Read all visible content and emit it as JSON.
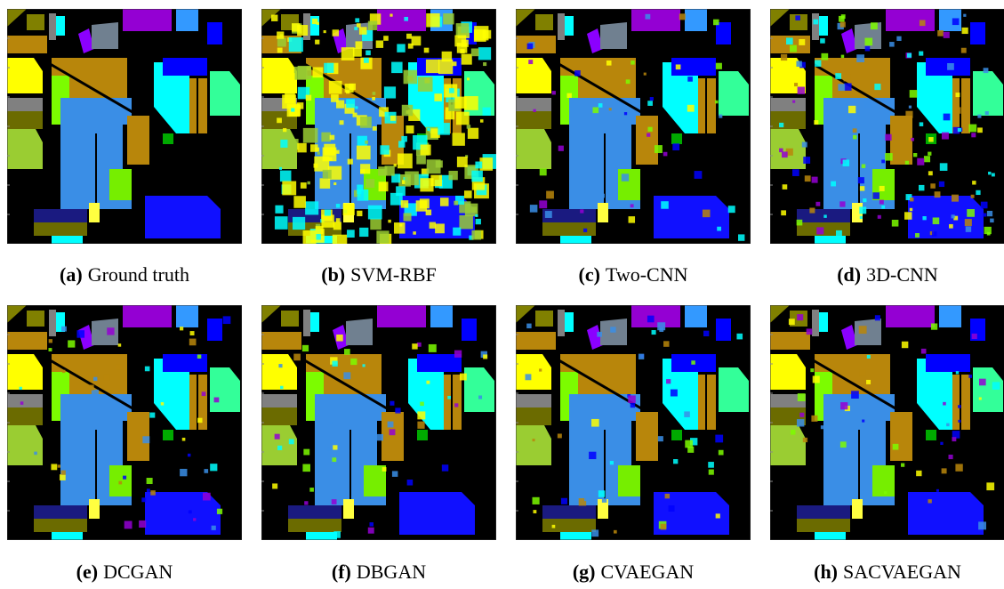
{
  "panels": [
    {
      "letter": "(a)",
      "label": "Ground truth"
    },
    {
      "letter": "(b)",
      "label": "SVM-RBF"
    },
    {
      "letter": "(c)",
      "label": "Two-CNN"
    },
    {
      "letter": "(d)",
      "label": "3D-CNN"
    },
    {
      "letter": "(e)",
      "label": "DCGAN"
    },
    {
      "letter": "(f)",
      "label": "DBGAN"
    },
    {
      "letter": "(g)",
      "label": "CVAEGAN"
    },
    {
      "letter": "(h)",
      "label": "SACVAEGAN"
    }
  ]
}
